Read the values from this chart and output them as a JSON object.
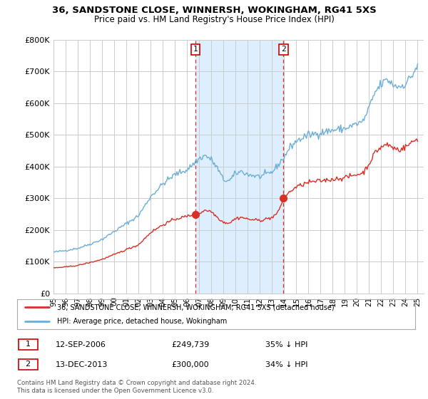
{
  "title": "36, SANDSTONE CLOSE, WINNERSH, WOKINGHAM, RG41 5XS",
  "subtitle": "Price paid vs. HM Land Registry's House Price Index (HPI)",
  "legend_line1": "36, SANDSTONE CLOSE, WINNERSH, WOKINGHAM, RG41 5XS (detached house)",
  "legend_line2": "HPI: Average price, detached house, Wokingham",
  "transaction1_date": "12-SEP-2006",
  "transaction1_price": "£249,739",
  "transaction1_hpi": "35% ↓ HPI",
  "transaction1_year": 2006.7,
  "transaction1_value": 249739,
  "transaction2_date": "13-DEC-2013",
  "transaction2_price": "£300,000",
  "transaction2_hpi": "34% ↓ HPI",
  "transaction2_year": 2013.95,
  "transaction2_value": 300000,
  "footnote": "Contains HM Land Registry data © Crown copyright and database right 2024.\nThis data is licensed under the Open Government Licence v3.0.",
  "ylim": [
    0,
    800000
  ],
  "yticks": [
    0,
    100000,
    200000,
    300000,
    400000,
    500000,
    600000,
    700000,
    800000
  ],
  "ytick_labels": [
    "£0",
    "£100K",
    "£200K",
    "£300K",
    "£400K",
    "£500K",
    "£600K",
    "£700K",
    "£800K"
  ],
  "xlim_start": 1995.0,
  "xlim_end": 2025.5,
  "hpi_color": "#6baed6",
  "price_paid_color": "#d73027",
  "shading_color": "#ddeeff",
  "vline_color": "#d73027",
  "grid_color": "#cccccc"
}
